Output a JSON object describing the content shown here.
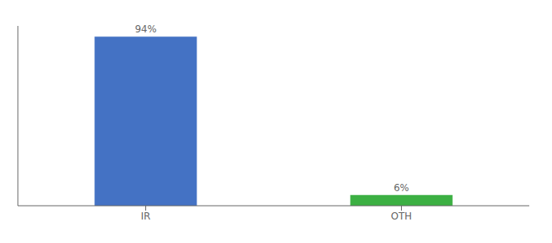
{
  "chart_data": {
    "type": "bar",
    "categories": [
      "IR",
      "OTH"
    ],
    "values": [
      94,
      6
    ],
    "colors": [
      "#4472c4",
      "#3cb043"
    ],
    "value_labels": [
      "94%",
      "6%"
    ],
    "data_labels": true,
    "ylim": [
      0,
      100
    ],
    "tick_labels": "x",
    "grid": false
  }
}
